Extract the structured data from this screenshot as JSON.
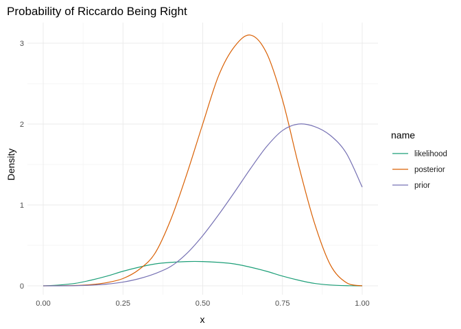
{
  "chart_data": {
    "type": "line",
    "title": "Probability of Riccardo Being Right",
    "xlabel": "x",
    "ylabel": "Density",
    "xlim": [
      0,
      1
    ],
    "ylim": [
      0,
      3.1
    ],
    "x_ticks": [
      0,
      0.25,
      0.5,
      0.75,
      1
    ],
    "x_tick_labels": [
      "0.00",
      "0.25",
      "0.50",
      "0.75",
      "1.00"
    ],
    "y_ticks": [
      0,
      1,
      2,
      3
    ],
    "y_tick_labels": [
      "0",
      "1",
      "2",
      "3"
    ],
    "grid": true,
    "legend": {
      "title": "name",
      "position": "right"
    },
    "x": [
      0,
      0.05,
      0.1,
      0.15,
      0.2,
      0.25,
      0.3,
      0.35,
      0.4,
      0.45,
      0.5,
      0.55,
      0.6,
      0.65,
      0.7,
      0.75,
      0.8,
      0.85,
      0.9,
      0.95,
      1
    ],
    "series": [
      {
        "name": "likelihood",
        "color": "#1b9e77",
        "values": [
          0,
          0.01,
          0.03,
          0.07,
          0.12,
          0.18,
          0.23,
          0.27,
          0.29,
          0.3,
          0.3,
          0.29,
          0.27,
          0.23,
          0.18,
          0.12,
          0.07,
          0.03,
          0.01,
          0.002,
          0
        ]
      },
      {
        "name": "posterior",
        "color": "#d95f02",
        "values": [
          0,
          0.001,
          0.004,
          0.015,
          0.04,
          0.09,
          0.2,
          0.4,
          0.82,
          1.38,
          2.0,
          2.6,
          2.96,
          3.1,
          2.88,
          2.3,
          1.5,
          0.78,
          0.26,
          0.04,
          0
        ]
      },
      {
        "name": "prior",
        "color": "#7570b3",
        "values": [
          0,
          0.0001,
          0.002,
          0.008,
          0.021,
          0.046,
          0.088,
          0.15,
          0.24,
          0.4,
          0.62,
          0.88,
          1.16,
          1.45,
          1.72,
          1.92,
          2.0,
          1.97,
          1.86,
          1.64,
          1.22
        ]
      }
    ]
  }
}
